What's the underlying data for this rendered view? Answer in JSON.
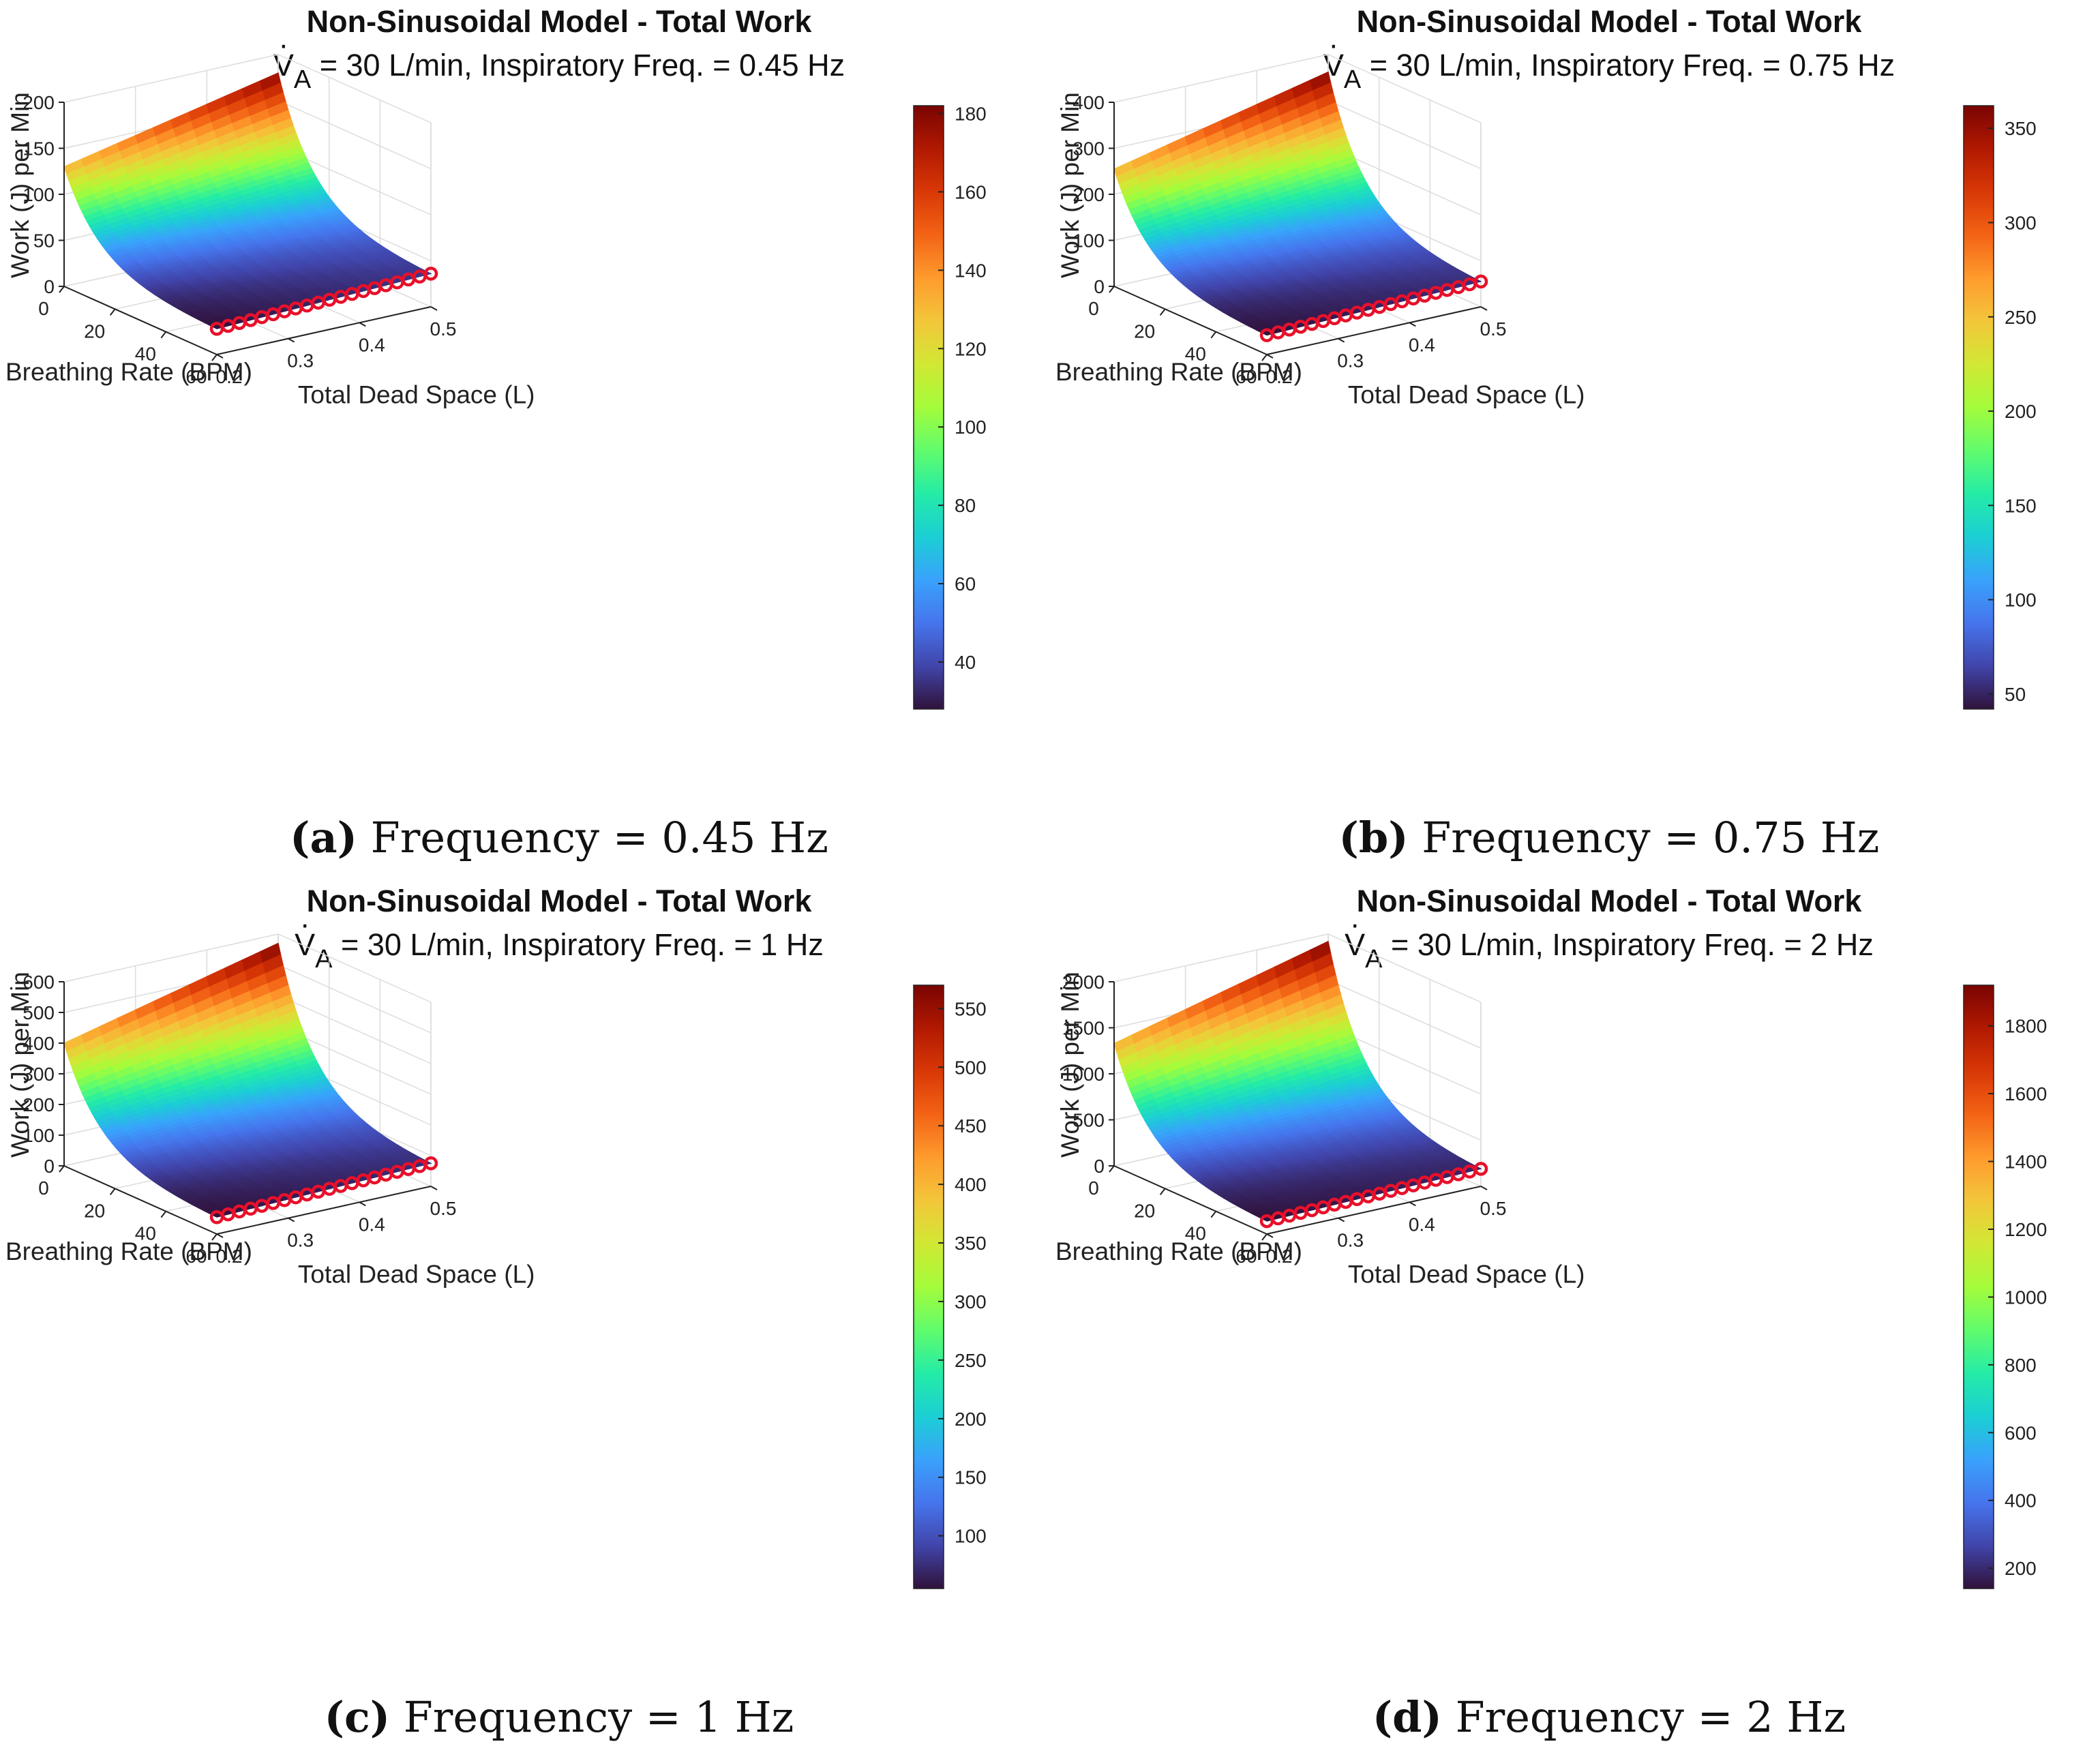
{
  "colors": {
    "marker": "#e8102a",
    "grid": "#dcdcdc",
    "axis": "#222222",
    "text": "#222222",
    "colormap": [
      "#30123b",
      "#4145ab",
      "#4675ed",
      "#39a2fc",
      "#1bcfd4",
      "#24eca6",
      "#61fc6c",
      "#a4fc3b",
      "#d1e834",
      "#f3c63a",
      "#fe9b2d",
      "#f36315",
      "#d93806",
      "#b11901",
      "#7a0402"
    ]
  },
  "chart_data": [
    {
      "type": "surface",
      "title": "Non-Sinusoidal Model - Total Work",
      "subtitle": {
        "v_symbol": "V",
        "v_sub": "A",
        "text": " = 30 L/min, Inspiratory Freq. = 0.45 Hz"
      },
      "caption": {
        "label": "(a)",
        "text": " Frequency = 0.45 Hz"
      },
      "xlabel": "Breathing Rate (BPM)",
      "ylabel": "Total Dead Space (L)",
      "zlabel": "Work (J) per Min",
      "x_ticks": [
        "0",
        "20",
        "40",
        "60"
      ],
      "y_ticks": [
        "0.2",
        "0.3",
        "0.4",
        "0.5"
      ],
      "z_ticks": [
        "0",
        "50",
        "100",
        "150",
        "200"
      ],
      "z_range": [
        0,
        200
      ],
      "colorbar": {
        "ticks": [
          "40",
          "60",
          "80",
          "100",
          "120",
          "140",
          "160",
          "180"
        ],
        "range": [
          28,
          182
        ]
      },
      "surface": {
        "breathing_rate_range": [
          0,
          60
        ],
        "dead_space_range": [
          0.2,
          0.5
        ],
        "max_work_at_bpm0_vd02": 130,
        "max_work_at_bpm0_vd05": 180,
        "min_work_at_vd02": 28,
        "min_work_at_vd05": 36
      },
      "optimal_markers": {
        "dead_space_start": 0.2,
        "dead_space_end": 0.5,
        "count": 20,
        "work_start": 28,
        "work_end": 36
      }
    },
    {
      "type": "surface",
      "title": "Non-Sinusoidal Model - Total Work",
      "subtitle": {
        "v_symbol": "V",
        "v_sub": "A",
        "text": " = 30 L/min, Inspiratory Freq. = 0.75 Hz"
      },
      "caption": {
        "label": "(b)",
        "text": " Frequency = 0.75 Hz"
      },
      "xlabel": "Breathing Rate (BPM)",
      "ylabel": "Total Dead Space (L)",
      "zlabel": "Work (J) per Min",
      "x_ticks": [
        "0",
        "20",
        "40",
        "60"
      ],
      "y_ticks": [
        "0.2",
        "0.3",
        "0.4",
        "0.5"
      ],
      "z_ticks": [
        "0",
        "100",
        "200",
        "300",
        "400"
      ],
      "z_range": [
        0,
        400
      ],
      "colorbar": {
        "ticks": [
          "50",
          "100",
          "150",
          "200",
          "250",
          "300",
          "350"
        ],
        "range": [
          42,
          362
        ]
      },
      "surface": {
        "breathing_rate_range": [
          0,
          60
        ],
        "dead_space_range": [
          0.2,
          0.5
        ],
        "max_work_at_bpm0_vd02": 255,
        "max_work_at_bpm0_vd05": 362,
        "min_work_at_vd02": 42,
        "min_work_at_vd05": 55
      },
      "optimal_markers": {
        "dead_space_start": 0.2,
        "dead_space_end": 0.5,
        "count": 20,
        "work_start": 42,
        "work_end": 55
      }
    },
    {
      "type": "surface",
      "title": "Non-Sinusoidal Model - Total Work",
      "subtitle": {
        "v_symbol": "V",
        "v_sub": "A",
        "text": " = 30 L/min, Inspiratory Freq. = 1 Hz"
      },
      "caption": {
        "label": "(c)",
        "text": " Frequency = 1 Hz"
      },
      "xlabel": "Breathing Rate (BPM)",
      "ylabel": "Total Dead Space (L)",
      "zlabel": "Work (J) per Min",
      "x_ticks": [
        "0",
        "20",
        "40",
        "60"
      ],
      "y_ticks": [
        "0.2",
        "0.3",
        "0.4",
        "0.5"
      ],
      "z_ticks": [
        "0",
        "100",
        "200",
        "300",
        "400",
        "500",
        "600"
      ],
      "z_range": [
        0,
        600
      ],
      "colorbar": {
        "ticks": [
          "100",
          "150",
          "200",
          "250",
          "300",
          "350",
          "400",
          "450",
          "500",
          "550"
        ],
        "range": [
          55,
          570
        ]
      },
      "surface": {
        "breathing_rate_range": [
          0,
          60
        ],
        "dead_space_range": [
          0.2,
          0.5
        ],
        "max_work_at_bpm0_vd02": 400,
        "max_work_at_bpm0_vd05": 570,
        "min_work_at_vd02": 55,
        "min_work_at_vd05": 75
      },
      "optimal_markers": {
        "dead_space_start": 0.2,
        "dead_space_end": 0.5,
        "count": 20,
        "work_start": 55,
        "work_end": 75
      }
    },
    {
      "type": "surface",
      "title": "Non-Sinusoidal Model - Total Work",
      "subtitle": {
        "v_symbol": "V",
        "v_sub": "A",
        "text": " = 30 L/min, Inspiratory Freq. = 2 Hz"
      },
      "caption": {
        "label": "(d)",
        "text": " Frequency = 2 Hz"
      },
      "xlabel": "Breathing Rate (BPM)",
      "ylabel": "Total Dead Space (L)",
      "zlabel": "Work (J) per Min",
      "x_ticks": [
        "0",
        "20",
        "40",
        "60"
      ],
      "y_ticks": [
        "0.2",
        "0.3",
        "0.4",
        "0.5"
      ],
      "z_ticks": [
        "0",
        "500",
        "1000",
        "1500",
        "2000"
      ],
      "z_range": [
        0,
        2000
      ],
      "colorbar": {
        "ticks": [
          "200",
          "400",
          "600",
          "800",
          "1000",
          "1200",
          "1400",
          "1600",
          "1800"
        ],
        "range": [
          140,
          1920
        ]
      },
      "surface": {
        "breathing_rate_range": [
          0,
          60
        ],
        "dead_space_range": [
          0.2,
          0.5
        ],
        "max_work_at_bpm0_vd02": 1330,
        "max_work_at_bpm0_vd05": 1920,
        "min_work_at_vd02": 140,
        "min_work_at_vd05": 190
      },
      "optimal_markers": {
        "dead_space_start": 0.2,
        "dead_space_end": 0.5,
        "count": 20,
        "work_start": 140,
        "work_end": 190
      }
    }
  ]
}
